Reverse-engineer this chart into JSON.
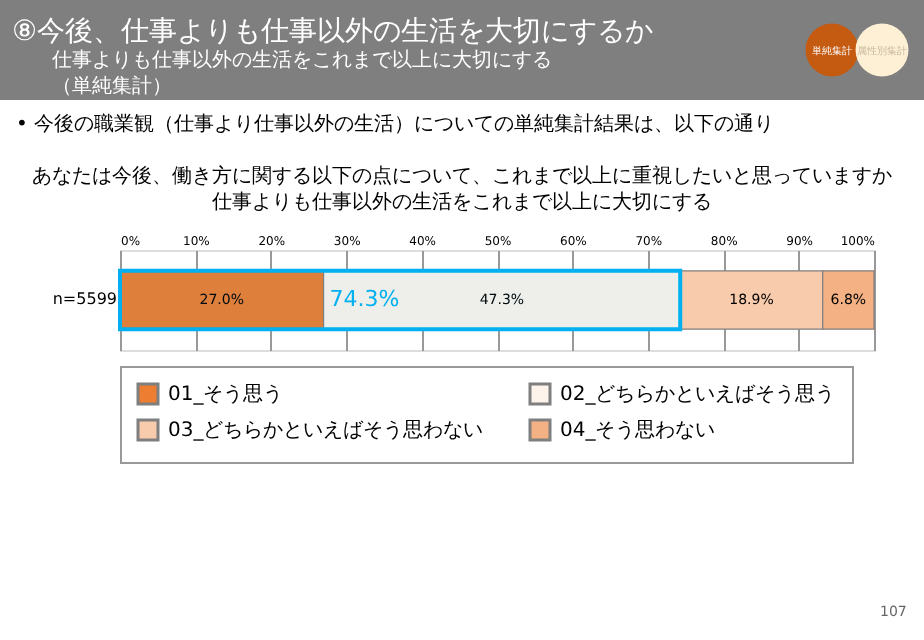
{
  "chart_data": {
    "type": "bar",
    "orientation": "horizontal",
    "stacked": true,
    "title": "⑧今後、仕事よりも仕事以外の生活を大切にするか",
    "subtitle": "仕事よりも仕事以外の生活をこれまで以上に大切にする",
    "categories": [
      "n=5599"
    ],
    "series": [
      {
        "name": "01_そう思う",
        "color": "#ed7d31",
        "values": [
          27.0
        ],
        "value_labels": [
          "27.0%"
        ]
      },
      {
        "name": "02_どちらかといえばそう思う",
        "color": "#fdf3ea",
        "values": [
          47.3
        ],
        "value_labels": [
          "47.3%"
        ]
      },
      {
        "name": "03_どちらかといえばそう思わない",
        "color": "#f8cbad",
        "values": [
          18.9
        ],
        "value_labels": [
          "18.9%"
        ]
      },
      {
        "name": "04_そう思わない",
        "color": "#f4b183",
        "values": [
          6.8
        ],
        "value_labels": [
          "6.8%"
        ]
      }
    ],
    "xlim": [
      0,
      100
    ],
    "xticks": [
      {
        "value": 0,
        "label": "0%"
      },
      {
        "value": 10,
        "label": "10%"
      },
      {
        "value": 20,
        "label": "20%"
      },
      {
        "value": 30,
        "label": "30%"
      },
      {
        "value": 40,
        "label": "40%"
      },
      {
        "value": 50,
        "label": "50%"
      },
      {
        "value": 60,
        "label": "60%"
      },
      {
        "value": 70,
        "label": "70%"
      },
      {
        "value": 80,
        "label": "80%"
      },
      {
        "value": 90,
        "label": "90%"
      },
      {
        "value": 100,
        "label": "100%"
      }
    ],
    "grid": "x",
    "legend": "bottom",
    "annotations": [
      "（単純集計）",
      "• 今後の職業観（仕事より仕事以外の生活）についての単純集計結果は、以下の通り",
      "あなたは今後、働き方に関する以下の点について、これまで以上に重視したいと思っていますか",
      "仕事よりも仕事以外の生活をこれまで以上に大切にする",
      "単純集計",
      "属性別集計",
      "107"
    ],
    "bands": [
      {
        "axis": "x",
        "from": 0,
        "to": 74.3,
        "label": "74.3%",
        "color": "#00b0f0"
      }
    ]
  }
}
